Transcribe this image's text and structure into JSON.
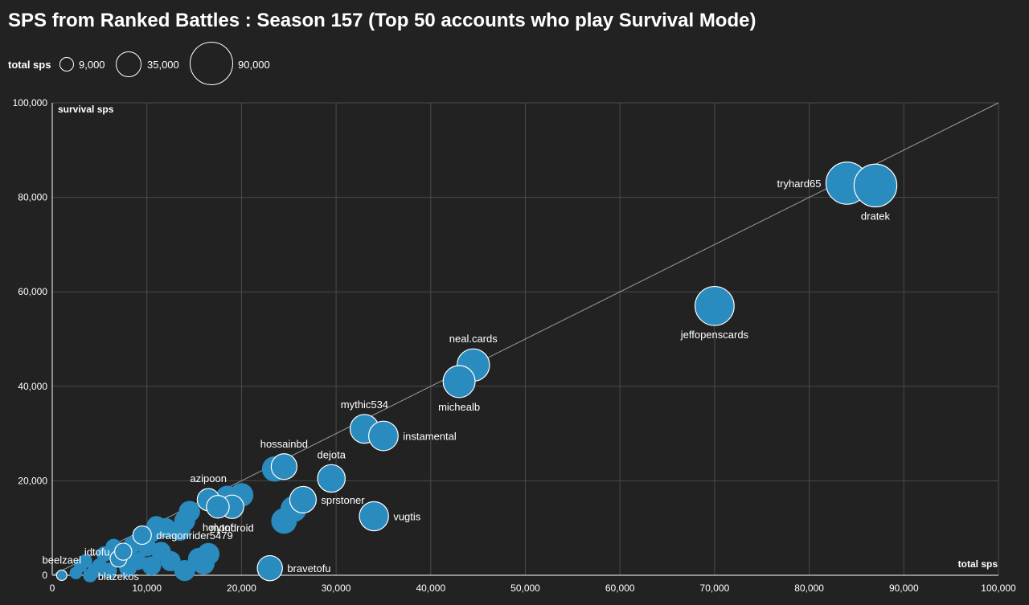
{
  "title": "SPS from Ranked Battles : Season 157 (Top 50 accounts who play Survival Mode)",
  "colors": {
    "background": "#222222",
    "bubble": "#2a8bbf",
    "grid": "#4a4a4a",
    "text": "#ffffff"
  },
  "legend": {
    "title": "total sps",
    "items": [
      {
        "label": "9,000",
        "value": 9000
      },
      {
        "label": "35,000",
        "value": 35000
      },
      {
        "label": "90,000",
        "value": 90000
      }
    ]
  },
  "chart_data": {
    "type": "scatter",
    "title": "SPS from Ranked Battles : Season 157 (Top 50 accounts who play Survival Mode)",
    "xlabel": "total sps",
    "ylabel": "survival sps",
    "xlim": [
      0,
      100000
    ],
    "ylim": [
      0,
      100000
    ],
    "x_ticks": [
      0,
      10000,
      20000,
      30000,
      40000,
      50000,
      60000,
      70000,
      80000,
      90000,
      100000
    ],
    "y_ticks": [
      0,
      20000,
      40000,
      60000,
      80000,
      100000
    ],
    "x_tick_labels": [
      "0",
      "10,000",
      "20,000",
      "30,000",
      "40,000",
      "50,000",
      "60,000",
      "70,000",
      "80,000",
      "90,000",
      "100,000"
    ],
    "y_tick_labels": [
      "0",
      "20,000",
      "40,000",
      "60,000",
      "80,000",
      "100,000"
    ],
    "grid": true,
    "legend_position": "top-left",
    "reference_line": "y = x",
    "points": [
      {
        "name": "tryhard65",
        "x": 84000,
        "y": 83000,
        "size": 84000,
        "label": "tryhard65",
        "label_pos": "left",
        "highlighted": true
      },
      {
        "name": "dratek",
        "x": 87000,
        "y": 82500,
        "size": 87000,
        "label": "dratek",
        "label_pos": "below",
        "highlighted": true
      },
      {
        "name": "jeffopenscards",
        "x": 70000,
        "y": 57000,
        "size": 70000,
        "label": "jeffopenscards",
        "label_pos": "below",
        "highlighted": true
      },
      {
        "name": "neal.cards",
        "x": 44500,
        "y": 44500,
        "size": 44500,
        "label": "neal.cards",
        "label_pos": "above",
        "highlighted": true
      },
      {
        "name": "michealb",
        "x": 43000,
        "y": 41000,
        "size": 43000,
        "label": "michealb",
        "label_pos": "below",
        "highlighted": true
      },
      {
        "name": "mythic534",
        "x": 33000,
        "y": 31000,
        "size": 33000,
        "label": "mythic534",
        "label_pos": "above",
        "highlighted": true
      },
      {
        "name": "instamental",
        "x": 35000,
        "y": 29500,
        "size": 35000,
        "label": "instamental",
        "label_pos": "right",
        "highlighted": true
      },
      {
        "name": "hossainbd",
        "x": 24500,
        "y": 23000,
        "size": 24500,
        "label": "hossainbd",
        "label_pos": "above",
        "highlighted": true
      },
      {
        "name": "dejota",
        "x": 29500,
        "y": 20500,
        "size": 29500,
        "label": "dejota",
        "label_pos": "above",
        "highlighted": true
      },
      {
        "name": "sprstoner",
        "x": 26500,
        "y": 16000,
        "size": 26500,
        "label": "sprstoner",
        "label_pos": "right",
        "highlighted": true
      },
      {
        "name": "vugtis",
        "x": 34000,
        "y": 12500,
        "size": 34000,
        "label": "vugtis",
        "label_pos": "right",
        "highlighted": true
      },
      {
        "name": "azipoon",
        "x": 16500,
        "y": 16000,
        "size": 16500,
        "label": "azipoon",
        "label_pos": "above",
        "highlighted": true
      },
      {
        "name": "mondroid",
        "x": 19000,
        "y": 14500,
        "size": 19000,
        "label": "mondroid",
        "label_pos": "below",
        "highlighted": true
      },
      {
        "name": "holytofu",
        "x": 17500,
        "y": 14500,
        "size": 17500,
        "label": "holytof",
        "label_pos": "below",
        "highlighted": true
      },
      {
        "name": "dragonrider5479",
        "x": 9500,
        "y": 8500,
        "size": 9500,
        "label": "dragonrider5479",
        "label_pos": "right",
        "highlighted": true
      },
      {
        "name": "bravetofu",
        "x": 23000,
        "y": 1500,
        "size": 23000,
        "label": "bravetofu",
        "label_pos": "right",
        "highlighted": true
      },
      {
        "name": "blazekos",
        "x": 7000,
        "y": 3500,
        "size": 7000,
        "label": "blazekos",
        "label_pos": "below",
        "highlighted": true
      },
      {
        "name": "idtofu",
        "x": 7500,
        "y": 5000,
        "size": 7500,
        "label": "idtofu",
        "label_pos": "left",
        "highlighted": true
      },
      {
        "name": "beelzael",
        "x": 1000,
        "y": 0,
        "size": 1000,
        "label": "beelzael",
        "label_pos": "above",
        "highlighted": true
      },
      {
        "name": "",
        "x": 23500,
        "y": 22500,
        "size": 23500
      },
      {
        "name": "",
        "x": 24500,
        "y": 11500,
        "size": 24500
      },
      {
        "name": "",
        "x": 25500,
        "y": 14000,
        "size": 25500
      },
      {
        "name": "",
        "x": 20000,
        "y": 17000,
        "size": 20000
      },
      {
        "name": "",
        "x": 18500,
        "y": 16500,
        "size": 18500
      },
      {
        "name": "",
        "x": 14500,
        "y": 13500,
        "size": 14500
      },
      {
        "name": "",
        "x": 14000,
        "y": 11500,
        "size": 14000
      },
      {
        "name": "",
        "x": 13500,
        "y": 9500,
        "size": 13500
      },
      {
        "name": "",
        "x": 12000,
        "y": 10000,
        "size": 12000
      },
      {
        "name": "",
        "x": 11000,
        "y": 10500,
        "size": 11000
      },
      {
        "name": "",
        "x": 10500,
        "y": 9000,
        "size": 10500
      },
      {
        "name": "",
        "x": 10000,
        "y": 6000,
        "size": 10000
      },
      {
        "name": "",
        "x": 11500,
        "y": 5000,
        "size": 11500
      },
      {
        "name": "",
        "x": 12500,
        "y": 3000,
        "size": 12500
      },
      {
        "name": "",
        "x": 14000,
        "y": 1000,
        "size": 14000
      },
      {
        "name": "",
        "x": 15500,
        "y": 3500,
        "size": 15500
      },
      {
        "name": "",
        "x": 16500,
        "y": 4500,
        "size": 16500
      },
      {
        "name": "",
        "x": 16000,
        "y": 2500,
        "size": 16000
      },
      {
        "name": "",
        "x": 9000,
        "y": 3000,
        "size": 9000
      },
      {
        "name": "",
        "x": 8500,
        "y": 6500,
        "size": 8500
      },
      {
        "name": "",
        "x": 6500,
        "y": 6000,
        "size": 6500
      },
      {
        "name": "",
        "x": 5500,
        "y": 4500,
        "size": 5500
      },
      {
        "name": "",
        "x": 5000,
        "y": 2000,
        "size": 5000
      },
      {
        "name": "",
        "x": 4500,
        "y": 1000,
        "size": 4500
      },
      {
        "name": "",
        "x": 3500,
        "y": 3000,
        "size": 3500
      },
      {
        "name": "",
        "x": 3000,
        "y": 2000,
        "size": 3000
      },
      {
        "name": "",
        "x": 2500,
        "y": 500,
        "size": 2500
      },
      {
        "name": "",
        "x": 4000,
        "y": 0,
        "size": 4000
      },
      {
        "name": "",
        "x": 8000,
        "y": 1500,
        "size": 8000
      },
      {
        "name": "",
        "x": 10500,
        "y": 2000,
        "size": 10500
      },
      {
        "name": "",
        "x": 6000,
        "y": 1000,
        "size": 6000
      }
    ]
  }
}
